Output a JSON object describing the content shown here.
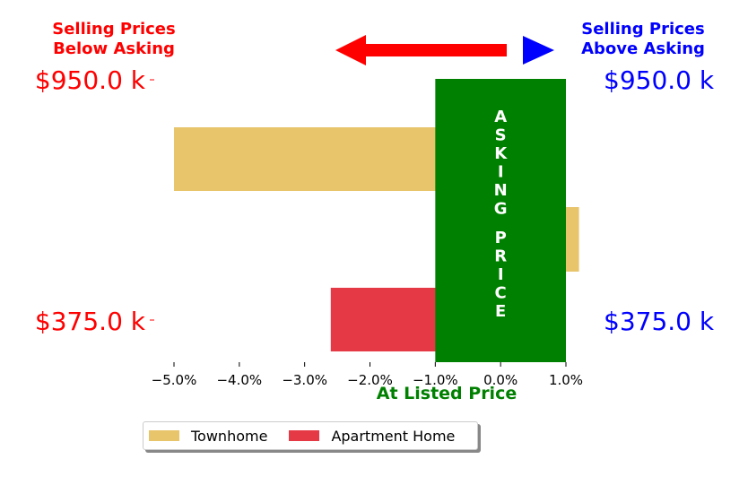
{
  "annotations": {
    "left_header": [
      "Selling Prices",
      "Below Asking"
    ],
    "right_header": [
      "Selling Prices",
      "Above Asking"
    ],
    "center_label": "At Listed Price",
    "asking_price_text": "ASKING PRICE",
    "left_price_labels": [
      "$950.0 k",
      "$375.0 k"
    ],
    "right_price_labels": [
      "$950.0 k",
      "$375.0 k"
    ],
    "left_arrow_color": "#ff0000",
    "right_arrow_color": "#0000ff",
    "left_text_color": "#ff0000",
    "right_text_color": "#0000ff",
    "center_color": "#008000"
  },
  "chart_data": {
    "type": "bar",
    "orientation": "horizontal",
    "x_unit": "percent",
    "xlim": [
      -5.5,
      1.0
    ],
    "xticks": [
      -5.0,
      -4.0,
      -3.0,
      -2.0,
      -1.0,
      0.0,
      1.0
    ],
    "xtick_labels": [
      "−5.0%",
      "−4.0%",
      "−3.0%",
      "−2.0%",
      "−1.0%",
      "0.0%",
      "1.0%"
    ],
    "series": [
      {
        "name": "Townhome",
        "color": "#e8c46b",
        "values": [
          -5.0,
          1.2
        ]
      },
      {
        "name": "Apartment Home",
        "color": "#e63946",
        "values": [
          -2.6
        ]
      }
    ],
    "asking_band": {
      "x_start": -1.0,
      "x_end": 1.0,
      "color": "#008000"
    },
    "legend": {
      "position": "bottom-left",
      "entries": [
        "Townhome",
        "Apartment Home"
      ]
    }
  }
}
